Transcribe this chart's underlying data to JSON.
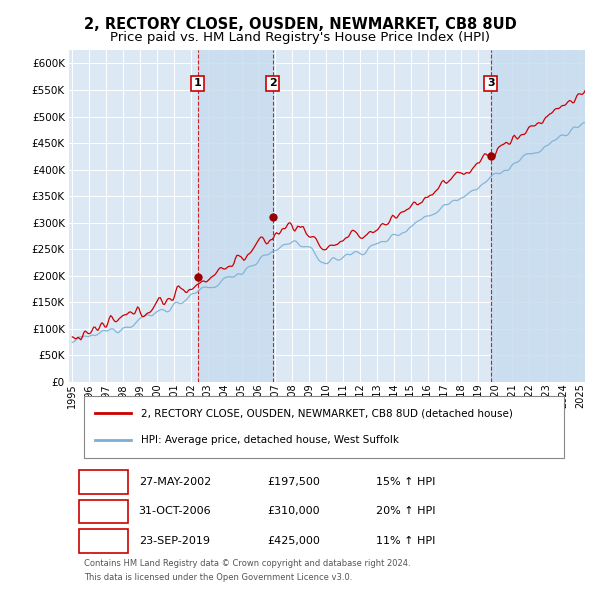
{
  "title": "2, RECTORY CLOSE, OUSDEN, NEWMARKET, CB8 8UD",
  "subtitle": "Price paid vs. HM Land Registry's House Price Index (HPI)",
  "title_fontsize": 10.5,
  "subtitle_fontsize": 9.5,
  "ytick_values": [
    0,
    50000,
    100000,
    150000,
    200000,
    250000,
    300000,
    350000,
    400000,
    450000,
    500000,
    550000,
    600000
  ],
  "ylim": [
    0,
    625000
  ],
  "xlim_start": 1994.8,
  "xlim_end": 2025.3,
  "sale_dates": [
    2002.41,
    2006.83,
    2019.73
  ],
  "sale_prices": [
    197500,
    310000,
    425000
  ],
  "sale_labels": [
    "1",
    "2",
    "3"
  ],
  "sale_info": [
    {
      "label": "1",
      "date": "27-MAY-2002",
      "price": "£197,500",
      "pct": "15% ↑ HPI"
    },
    {
      "label": "2",
      "date": "31-OCT-2006",
      "price": "£310,000",
      "pct": "20% ↑ HPI"
    },
    {
      "label": "3",
      "date": "23-SEP-2019",
      "price": "£425,000",
      "pct": "11% ↑ HPI"
    }
  ],
  "legend_entries": [
    "2, RECTORY CLOSE, OUSDEN, NEWMARKET, CB8 8UD (detached house)",
    "HPI: Average price, detached house, West Suffolk"
  ],
  "footer_line1": "Contains HM Land Registry data © Crown copyright and database right 2024.",
  "footer_line2": "This data is licensed under the Open Government Licence v3.0.",
  "background_color": "#ffffff",
  "plot_bg_color": "#dce9f5",
  "shaded_region_color": "#c8ddf0",
  "grid_color": "#ffffff",
  "hpi_color": "#7bafd4",
  "price_color": "#cc0000",
  "vline_color": "#cc0000",
  "sale_marker_color": "#990000"
}
